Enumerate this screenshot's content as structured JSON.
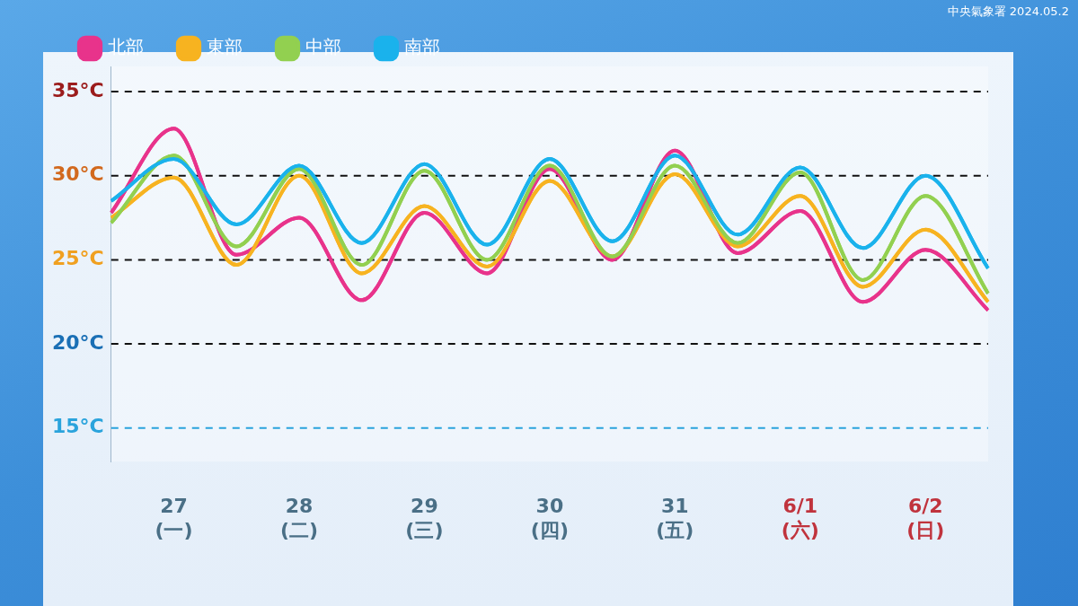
{
  "chart_data": {
    "type": "line",
    "annotations": [
      "中央氣象署 2024.05.2"
    ],
    "categories": [
      null,
      [
        "27",
        "(一)"
      ],
      null,
      [
        "28",
        "(二)"
      ],
      null,
      [
        "29",
        "(三)"
      ],
      null,
      [
        "30",
        "(四)"
      ],
      null,
      [
        "31",
        "(五)"
      ],
      null,
      [
        "6/1",
        "(六)"
      ],
      null,
      [
        "6/2",
        "(日)"
      ],
      null
    ],
    "series": [
      {
        "name": "北部",
        "color": "#e8338b",
        "values": [
          27.8,
          32.8,
          25.3,
          27.5,
          22.6,
          27.8,
          24.2,
          30.4,
          25.0,
          31.5,
          25.4,
          27.9,
          22.5,
          25.6,
          22.0
        ]
      },
      {
        "name": "東部",
        "color": "#f7b320",
        "values": [
          27.5,
          29.9,
          24.7,
          30.0,
          24.2,
          28.2,
          24.6,
          29.7,
          25.2,
          30.1,
          25.8,
          28.8,
          23.4,
          26.8,
          22.5
        ]
      },
      {
        "name": "中部",
        "color": "#92d050",
        "values": [
          27.2,
          31.2,
          25.8,
          30.4,
          24.7,
          30.3,
          25.0,
          30.6,
          25.2,
          30.6,
          26.0,
          30.2,
          23.8,
          28.8,
          23.0
        ]
      },
      {
        "name": "南部",
        "color": "#1ab2ec",
        "values": [
          28.5,
          31.0,
          27.1,
          30.6,
          26.0,
          30.7,
          25.9,
          31.0,
          26.1,
          31.2,
          26.5,
          30.5,
          25.7,
          30.0,
          24.5
        ]
      }
    ],
    "ylim": [
      13,
      36.5
    ],
    "yticks": [
      {
        "value": 15,
        "label": "15°C"
      },
      {
        "value": 20,
        "label": "20°C"
      },
      {
        "value": 25,
        "label": "25°C"
      },
      {
        "value": 30,
        "label": "30°C"
      },
      {
        "value": 35,
        "label": "35°C"
      }
    ],
    "grid": true,
    "legend": "top-left",
    "line_style": "solid",
    "marker": "none"
  }
}
